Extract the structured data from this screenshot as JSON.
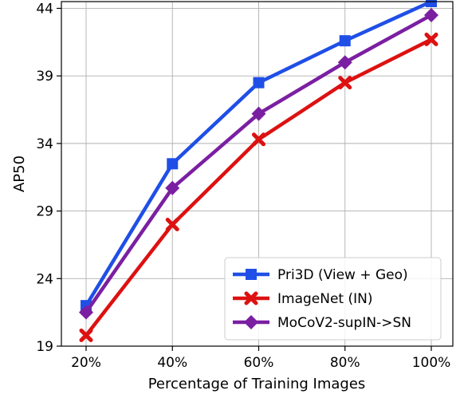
{
  "chart_data": {
    "type": "line",
    "categories": [
      "20%",
      "40%",
      "60%",
      "80%",
      "100%"
    ],
    "xlabel": "Percentage of Training Images",
    "ylabel": "AP50",
    "ylim": [
      19,
      44.5
    ],
    "yticks": [
      "19",
      "24",
      "29",
      "34",
      "39",
      "44"
    ],
    "ytick_values": [
      19,
      24,
      29,
      34,
      39,
      44
    ],
    "grid": true,
    "legend_position": "bottom-right",
    "series": [
      {
        "name": "Pri3D (View + Geo)",
        "color": "#1f4fe6",
        "marker": "square",
        "values": [
          22.0,
          32.5,
          38.5,
          41.6,
          44.5
        ]
      },
      {
        "name": "ImageNet (IN)",
        "color": "#dd1111",
        "marker": "x",
        "values": [
          19.8,
          28.0,
          34.3,
          38.5,
          41.7
        ]
      },
      {
        "name": "MoCoV2-supIN->SN",
        "color": "#7b1fa2",
        "marker": "diamond",
        "values": [
          21.5,
          30.7,
          36.2,
          40.0,
          43.5
        ]
      }
    ]
  }
}
